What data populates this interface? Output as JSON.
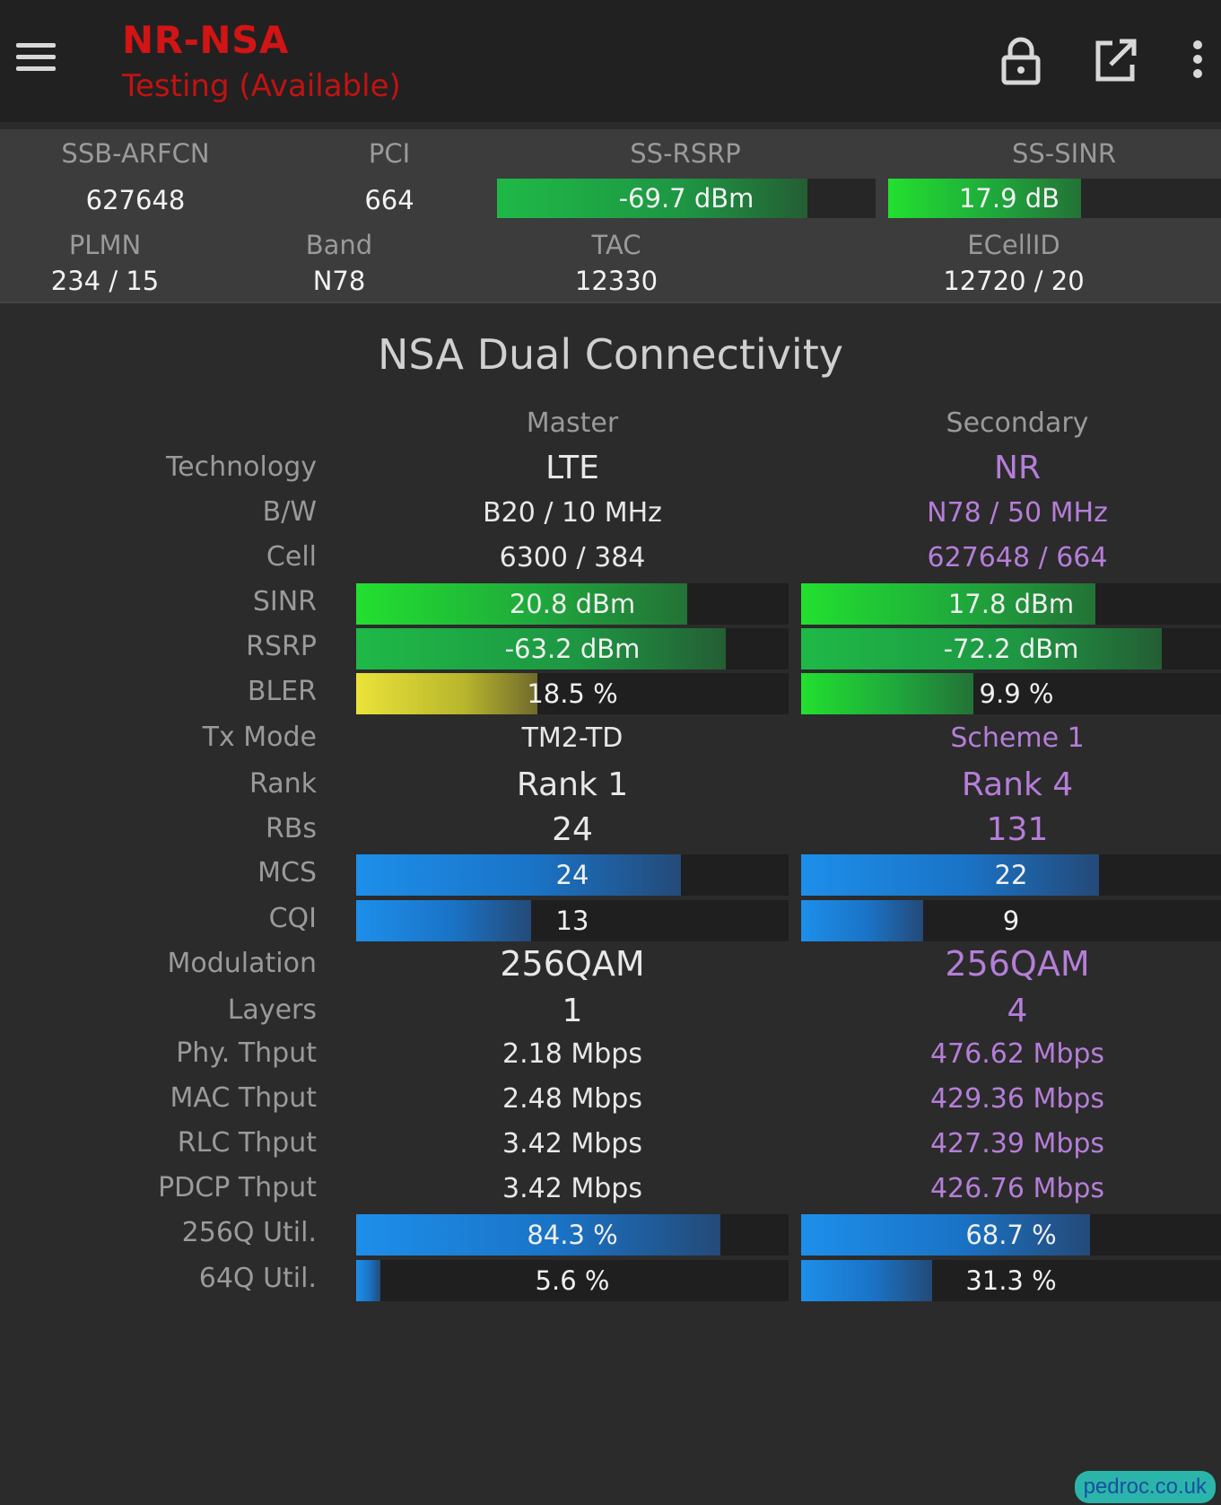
{
  "appbar": {
    "title": "NR-NSA",
    "subtitle": "Testing (Available)",
    "icons": [
      "menu-icon",
      "lock-icon",
      "open-in-new-icon",
      "more-vert-icon"
    ]
  },
  "summary": {
    "ssb_arfcn": {
      "label": "SSB-ARFCN",
      "value": "627648"
    },
    "pci": {
      "label": "PCI",
      "value": "664"
    },
    "ss_rsrp": {
      "label": "SS-RSRP",
      "value": "-69.7 dBm",
      "level": 0.82
    },
    "ss_sinr": {
      "label": "SS-SINR",
      "value": "17.9 dB",
      "level": 0.58
    },
    "plmn": {
      "label": "PLMN",
      "value": "234 / 15"
    },
    "band": {
      "label": "Band",
      "value": "N78"
    },
    "tac": {
      "label": "TAC",
      "value": "12330"
    },
    "ecellid": {
      "label": "ECellID",
      "value": "12720 / 20"
    }
  },
  "section": {
    "title": "NSA Dual Connectivity",
    "master_header": "Master",
    "secondary_header": "Secondary"
  },
  "rows": {
    "technology": {
      "label": "Technology",
      "master": "LTE",
      "secondary": "NR"
    },
    "bw": {
      "label": "B/W",
      "master": "B20 / 10 MHz",
      "secondary": "N78 / 50 MHz"
    },
    "cell": {
      "label": "Cell",
      "master": "6300 / 384",
      "secondary": "627648 / 664"
    },
    "sinr": {
      "label": "SINR",
      "master": "20.8 dBm",
      "master_level": 0.765,
      "secondary": "17.8 dBm",
      "secondary_level": 0.7
    },
    "rsrp": {
      "label": "RSRP",
      "master": "-63.2 dBm",
      "master_level": 0.855,
      "secondary": "-72.2 dBm",
      "secondary_level": 0.86
    },
    "bler": {
      "label": "BLER",
      "master": "18.5 %",
      "master_level": 0.42,
      "secondary": "9.9 %",
      "secondary_level": 0.41
    },
    "tx_mode": {
      "label": "Tx Mode",
      "master": "TM2-TD",
      "secondary": "Scheme 1"
    },
    "rank": {
      "label": "Rank",
      "master": "Rank 1",
      "secondary": "Rank 4"
    },
    "rbs": {
      "label": "RBs",
      "master": "24",
      "secondary": "131"
    },
    "mcs": {
      "label": "MCS",
      "master": "24",
      "master_level": 0.75,
      "secondary": "22",
      "secondary_level": 0.71
    },
    "cqi": {
      "label": "CQI",
      "master": "13",
      "master_level": 0.405,
      "secondary": "9",
      "secondary_level": 0.29
    },
    "modulation": {
      "label": "Modulation",
      "master": "256QAM",
      "secondary": "256QAM"
    },
    "layers": {
      "label": "Layers",
      "master": "1",
      "secondary": "4"
    },
    "phy_thput": {
      "label": "Phy. Thput",
      "master": "2.18 Mbps",
      "secondary": "476.62 Mbps"
    },
    "mac_thput": {
      "label": "MAC Thput",
      "master": "2.48 Mbps",
      "secondary": "429.36 Mbps"
    },
    "rlc_thput": {
      "label": "RLC Thput",
      "master": "3.42 Mbps",
      "secondary": "427.39 Mbps"
    },
    "pdcp_thput": {
      "label": "PDCP Thput",
      "master": "3.42 Mbps",
      "secondary": "426.76 Mbps"
    },
    "util_256q": {
      "label": "256Q Util.",
      "master": "84.3 %",
      "master_level": 0.843,
      "secondary": "68.7 %",
      "secondary_level": 0.687
    },
    "util_64q": {
      "label": "64Q Util.",
      "master": "5.6 %",
      "master_level": 0.056,
      "secondary": "31.3 %",
      "secondary_level": 0.313
    }
  },
  "watermark": "pedroc.co.uk",
  "colors": {
    "title_red": "#d11414",
    "secondary_purple": "#b57ed8",
    "bar_green": "#22e02f",
    "bar_yellow": "#eae33a",
    "bar_blue": "#1d8fea"
  }
}
